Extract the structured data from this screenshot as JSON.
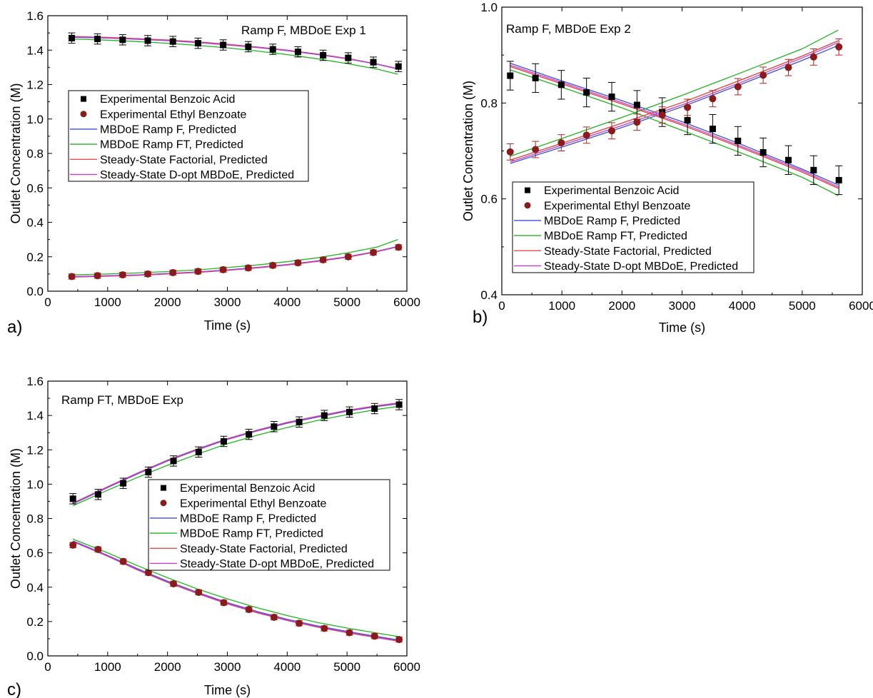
{
  "legend_entries": [
    "Experimental Benzoic Acid",
    "Experimental Ethyl Benzoate",
    "MBDoE Ramp F, Predicted",
    "MBDoE Ramp FT, Predicted",
    "Steady-State Factorial, Predicted",
    "Steady-State D-opt MBDoE, Predicted"
  ],
  "colors": {
    "benzoic_acid_marker": "#000000",
    "ethyl_benzoate_marker": "#8b1a1a",
    "mbdoe_ramp_f": "#3b4fd6",
    "mbdoe_ramp_ft": "#22b422",
    "steady_state_factorial": "#e83a3a",
    "steady_state_dopt": "#c040d0",
    "error_bar_benzoic": "#000000",
    "error_bar_ethyl": "#b22222"
  },
  "chart_data": [
    {
      "type": "scatter",
      "panel_label": "a)",
      "annotation": "Ramp F, MBDoE Exp 1",
      "xlabel": "Time (s)",
      "ylabel": "Outlet Concentration (M)",
      "xlim": [
        0,
        6000
      ],
      "ylim": [
        0.0,
        1.6
      ],
      "xticks": [
        "0",
        "1000",
        "2000",
        "3000",
        "4000",
        "5000",
        "6000"
      ],
      "yticks": [
        "0.0",
        "0.2",
        "0.4",
        "0.6",
        "0.8",
        "1.0",
        "1.2",
        "1.4",
        "1.6"
      ],
      "legend_position": "middle-left",
      "series": [
        {
          "name": "Experimental Benzoic Acid",
          "marker": "square",
          "x": [
            400,
            830,
            1250,
            1670,
            2090,
            2510,
            2930,
            3350,
            3760,
            4180,
            4600,
            5020,
            5440,
            5860
          ],
          "y": [
            1.47,
            1.465,
            1.46,
            1.455,
            1.45,
            1.44,
            1.43,
            1.42,
            1.405,
            1.39,
            1.37,
            1.355,
            1.33,
            1.305
          ],
          "err": [
            0.03,
            0.03,
            0.03,
            0.03,
            0.03,
            0.03,
            0.03,
            0.03,
            0.03,
            0.03,
            0.03,
            0.03,
            0.03,
            0.03
          ]
        },
        {
          "name": "Experimental Ethyl Benzoate",
          "marker": "circle",
          "x": [
            400,
            830,
            1250,
            1670,
            2090,
            2510,
            2930,
            3350,
            3760,
            4180,
            4600,
            5020,
            5440,
            5860
          ],
          "y": [
            0.085,
            0.09,
            0.095,
            0.1,
            0.108,
            0.115,
            0.125,
            0.135,
            0.15,
            0.165,
            0.182,
            0.2,
            0.225,
            0.255
          ],
          "err": [
            0.015,
            0.015,
            0.015,
            0.015,
            0.015,
            0.015,
            0.015,
            0.015,
            0.015,
            0.015,
            0.015,
            0.015,
            0.015,
            0.015
          ]
        },
        {
          "name": "MBDoE Ramp F, Predicted",
          "kind": "line",
          "x": [
            400,
            1000,
            1500,
            2000,
            2500,
            3000,
            3500,
            4000,
            4500,
            5000,
            5500,
            5850
          ],
          "y": [
            1.475,
            1.47,
            1.463,
            1.455,
            1.444,
            1.43,
            1.415,
            1.397,
            1.375,
            1.35,
            1.318,
            1.29
          ],
          "y2": [
            0.085,
            0.09,
            0.095,
            0.103,
            0.112,
            0.124,
            0.138,
            0.155,
            0.176,
            0.2,
            0.232,
            0.26
          ]
        },
        {
          "name": "MBDoE Ramp FT, Predicted",
          "kind": "line",
          "x": [
            400,
            1000,
            1500,
            2000,
            2500,
            3000,
            3500,
            4000,
            4500,
            5000,
            5500,
            5850
          ],
          "y": [
            1.465,
            1.458,
            1.45,
            1.44,
            1.428,
            1.413,
            1.395,
            1.374,
            1.35,
            1.322,
            1.29,
            1.26
          ],
          "y2": [
            0.095,
            0.1,
            0.106,
            0.114,
            0.124,
            0.137,
            0.152,
            0.171,
            0.194,
            0.222,
            0.256,
            0.3
          ]
        },
        {
          "name": "Steady-State Factorial, Predicted",
          "kind": "line",
          "x": [
            400,
            1000,
            1500,
            2000,
            2500,
            3000,
            3500,
            4000,
            4500,
            5000,
            5500,
            5850
          ],
          "y": [
            1.48,
            1.474,
            1.467,
            1.459,
            1.448,
            1.434,
            1.418,
            1.4,
            1.378,
            1.352,
            1.32,
            1.292
          ],
          "y2": [
            0.082,
            0.087,
            0.092,
            0.1,
            0.109,
            0.121,
            0.135,
            0.152,
            0.173,
            0.197,
            0.229,
            0.258
          ]
        },
        {
          "name": "Steady-State D-opt MBDoE, Predicted",
          "kind": "line",
          "x": [
            400,
            1000,
            1500,
            2000,
            2500,
            3000,
            3500,
            4000,
            4500,
            5000,
            5500,
            5850
          ],
          "y": [
            1.477,
            1.471,
            1.464,
            1.456,
            1.445,
            1.431,
            1.416,
            1.398,
            1.376,
            1.351,
            1.319,
            1.291
          ],
          "y2": [
            0.084,
            0.089,
            0.094,
            0.102,
            0.111,
            0.123,
            0.137,
            0.154,
            0.175,
            0.199,
            0.231,
            0.259
          ]
        }
      ]
    },
    {
      "type": "scatter",
      "panel_label": "b)",
      "annotation": "Ramp F, MBDoE Exp 2",
      "xlabel": "Time (s)",
      "ylabel": "Outlet Concentration (M)",
      "xlim": [
        0,
        6000
      ],
      "ylim": [
        0.4,
        1.0
      ],
      "xticks": [
        "0",
        "1000",
        "2000",
        "3000",
        "4000",
        "5000",
        "6000"
      ],
      "yticks": [
        "0.4",
        "0.6",
        "0.8",
        "1.0"
      ],
      "legend_position": "bottom-left",
      "series": [
        {
          "name": "Experimental Benzoic Acid",
          "marker": "square",
          "x": [
            140,
            560,
            990,
            1410,
            1830,
            2250,
            2670,
            3090,
            3510,
            3930,
            4350,
            4770,
            5190,
            5610
          ],
          "y": [
            0.857,
            0.852,
            0.838,
            0.822,
            0.813,
            0.796,
            0.781,
            0.764,
            0.746,
            0.721,
            0.697,
            0.681,
            0.66,
            0.639
          ],
          "err": [
            0.03,
            0.03,
            0.03,
            0.03,
            0.03,
            0.03,
            0.03,
            0.03,
            0.03,
            0.03,
            0.03,
            0.03,
            0.03,
            0.03
          ]
        },
        {
          "name": "Experimental Ethyl Benzoate",
          "marker": "circle",
          "x": [
            140,
            560,
            990,
            1410,
            1830,
            2250,
            2670,
            3090,
            3510,
            3930,
            4350,
            4770,
            5190,
            5610
          ],
          "y": [
            0.698,
            0.703,
            0.717,
            0.733,
            0.742,
            0.76,
            0.775,
            0.791,
            0.809,
            0.834,
            0.858,
            0.874,
            0.896,
            0.917
          ],
          "err": [
            0.017,
            0.017,
            0.017,
            0.017,
            0.017,
            0.017,
            0.017,
            0.017,
            0.017,
            0.017,
            0.017,
            0.017,
            0.017,
            0.017
          ]
        },
        {
          "name": "MBDoE Ramp F, Predicted",
          "kind": "line",
          "x": [
            140,
            1000,
            2000,
            3000,
            4000,
            5000,
            5600
          ],
          "y": [
            0.883,
            0.846,
            0.805,
            0.761,
            0.713,
            0.662,
            0.629
          ],
          "y2": [
            0.674,
            0.708,
            0.749,
            0.792,
            0.84,
            0.889,
            0.92
          ]
        },
        {
          "name": "MBDoE Ramp FT, Predicted",
          "kind": "line",
          "x": [
            140,
            1000,
            2000,
            3000,
            4000,
            5000,
            5600
          ],
          "y": [
            0.869,
            0.833,
            0.79,
            0.743,
            0.695,
            0.645,
            0.607
          ],
          "y2": [
            0.689,
            0.726,
            0.77,
            0.816,
            0.864,
            0.913,
            0.952
          ]
        },
        {
          "name": "Steady-State Factorial, Predicted",
          "kind": "line",
          "x": [
            140,
            1000,
            2000,
            3000,
            4000,
            5000,
            5600
          ],
          "y": [
            0.876,
            0.84,
            0.798,
            0.754,
            0.706,
            0.656,
            0.622
          ],
          "y2": [
            0.681,
            0.716,
            0.758,
            0.801,
            0.849,
            0.898,
            0.93
          ]
        },
        {
          "name": "Steady-State D-opt MBDoE, Predicted",
          "kind": "line",
          "x": [
            140,
            1000,
            2000,
            3000,
            4000,
            5000,
            5600
          ],
          "y": [
            0.879,
            0.843,
            0.801,
            0.757,
            0.709,
            0.659,
            0.625
          ],
          "y2": [
            0.677,
            0.712,
            0.753,
            0.796,
            0.844,
            0.894,
            0.926
          ]
        }
      ]
    },
    {
      "type": "scatter",
      "panel_label": "c)",
      "annotation": "Ramp FT, MBDoE Exp",
      "xlabel": "Time (s)",
      "ylabel": "Outlet Concentration (M)",
      "xlim": [
        0,
        6000
      ],
      "ylim": [
        0.0,
        1.6
      ],
      "xticks": [
        "0",
        "1000",
        "2000",
        "3000",
        "4000",
        "5000",
        "6000"
      ],
      "yticks": [
        "0.0",
        "0.2",
        "0.4",
        "0.6",
        "0.8",
        "1.0",
        "1.2",
        "1.4",
        "1.6"
      ],
      "legend_position": "center-right",
      "series": [
        {
          "name": "Experimental Benzoic Acid",
          "marker": "square",
          "x": [
            420,
            840,
            1260,
            1680,
            2100,
            2520,
            2940,
            3360,
            3780,
            4200,
            4620,
            5040,
            5460,
            5870
          ],
          "y": [
            0.915,
            0.94,
            1.005,
            1.07,
            1.135,
            1.187,
            1.249,
            1.29,
            1.335,
            1.362,
            1.4,
            1.42,
            1.44,
            1.463
          ],
          "err": [
            0.03,
            0.03,
            0.03,
            0.03,
            0.03,
            0.03,
            0.03,
            0.03,
            0.03,
            0.03,
            0.03,
            0.03,
            0.03,
            0.03
          ]
        },
        {
          "name": "Experimental Ethyl Benzoate",
          "marker": "circle",
          "x": [
            420,
            840,
            1260,
            1680,
            2100,
            2520,
            2940,
            3360,
            3780,
            4200,
            4620,
            5040,
            5460,
            5870
          ],
          "y": [
            0.645,
            0.62,
            0.55,
            0.485,
            0.42,
            0.37,
            0.31,
            0.27,
            0.225,
            0.19,
            0.16,
            0.135,
            0.115,
            0.095
          ],
          "err": [
            0.015,
            0.015,
            0.015,
            0.015,
            0.015,
            0.015,
            0.015,
            0.015,
            0.015,
            0.015,
            0.015,
            0.015,
            0.015,
            0.015
          ]
        },
        {
          "name": "MBDoE Ramp F, Predicted",
          "kind": "line",
          "x": [
            420,
            1000,
            1500,
            2000,
            2500,
            3000,
            3500,
            4000,
            4500,
            5000,
            5500,
            5900
          ],
          "y": [
            0.885,
            0.98,
            1.06,
            1.135,
            1.2,
            1.26,
            1.31,
            1.355,
            1.39,
            1.425,
            1.452,
            1.47
          ],
          "y2": [
            0.67,
            0.585,
            0.507,
            0.435,
            0.37,
            0.31,
            0.258,
            0.213,
            0.175,
            0.142,
            0.113,
            0.09
          ]
        },
        {
          "name": "MBDoE Ramp FT, Predicted",
          "kind": "line",
          "x": [
            420,
            1000,
            1500,
            2000,
            2500,
            3000,
            3500,
            4000,
            4500,
            5000,
            5500,
            5900
          ],
          "y": [
            0.875,
            0.965,
            1.04,
            1.11,
            1.175,
            1.235,
            1.285,
            1.33,
            1.37,
            1.405,
            1.435,
            1.455
          ],
          "y2": [
            0.68,
            0.6,
            0.525,
            0.455,
            0.39,
            0.332,
            0.28,
            0.235,
            0.195,
            0.162,
            0.133,
            0.11
          ]
        },
        {
          "name": "Steady-State Factorial, Predicted",
          "kind": "line",
          "x": [
            420,
            1000,
            1500,
            2000,
            2500,
            3000,
            3500,
            4000,
            4500,
            5000,
            5500,
            5900
          ],
          "y": [
            0.89,
            0.985,
            1.065,
            1.14,
            1.205,
            1.265,
            1.315,
            1.36,
            1.395,
            1.43,
            1.457,
            1.475
          ],
          "y2": [
            0.665,
            0.58,
            0.5,
            0.428,
            0.363,
            0.303,
            0.251,
            0.206,
            0.168,
            0.135,
            0.106,
            0.083
          ]
        },
        {
          "name": "Steady-State D-opt MBDoE, Predicted",
          "kind": "line",
          "x": [
            420,
            1000,
            1500,
            2000,
            2500,
            3000,
            3500,
            4000,
            4500,
            5000,
            5500,
            5900
          ],
          "y": [
            0.888,
            0.983,
            1.063,
            1.138,
            1.203,
            1.263,
            1.313,
            1.358,
            1.393,
            1.428,
            1.455,
            1.473
          ],
          "y2": [
            0.667,
            0.582,
            0.503,
            0.431,
            0.366,
            0.306,
            0.254,
            0.209,
            0.171,
            0.138,
            0.109,
            0.086
          ]
        }
      ]
    }
  ]
}
